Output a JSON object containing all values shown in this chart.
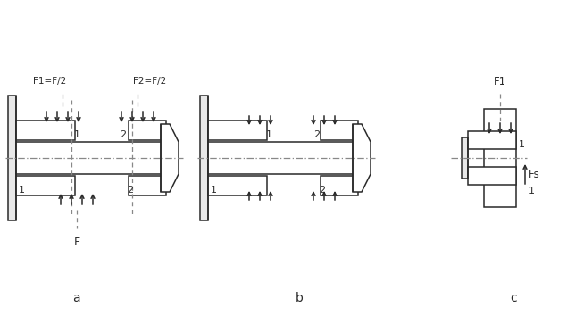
{
  "background": "#ffffff",
  "line_color": "#2a2a2a",
  "dash_color": "#888888",
  "fig_width": 6.35,
  "fig_height": 3.54,
  "dpi": 100,
  "label_a": "a",
  "label_b": "b",
  "label_c": "c",
  "text_F1_a": "F1=F/2",
  "text_F2_a": "F2=F/2",
  "text_F_a": "F",
  "text_F1_c": "F1",
  "text_Fs_c": "Fs"
}
